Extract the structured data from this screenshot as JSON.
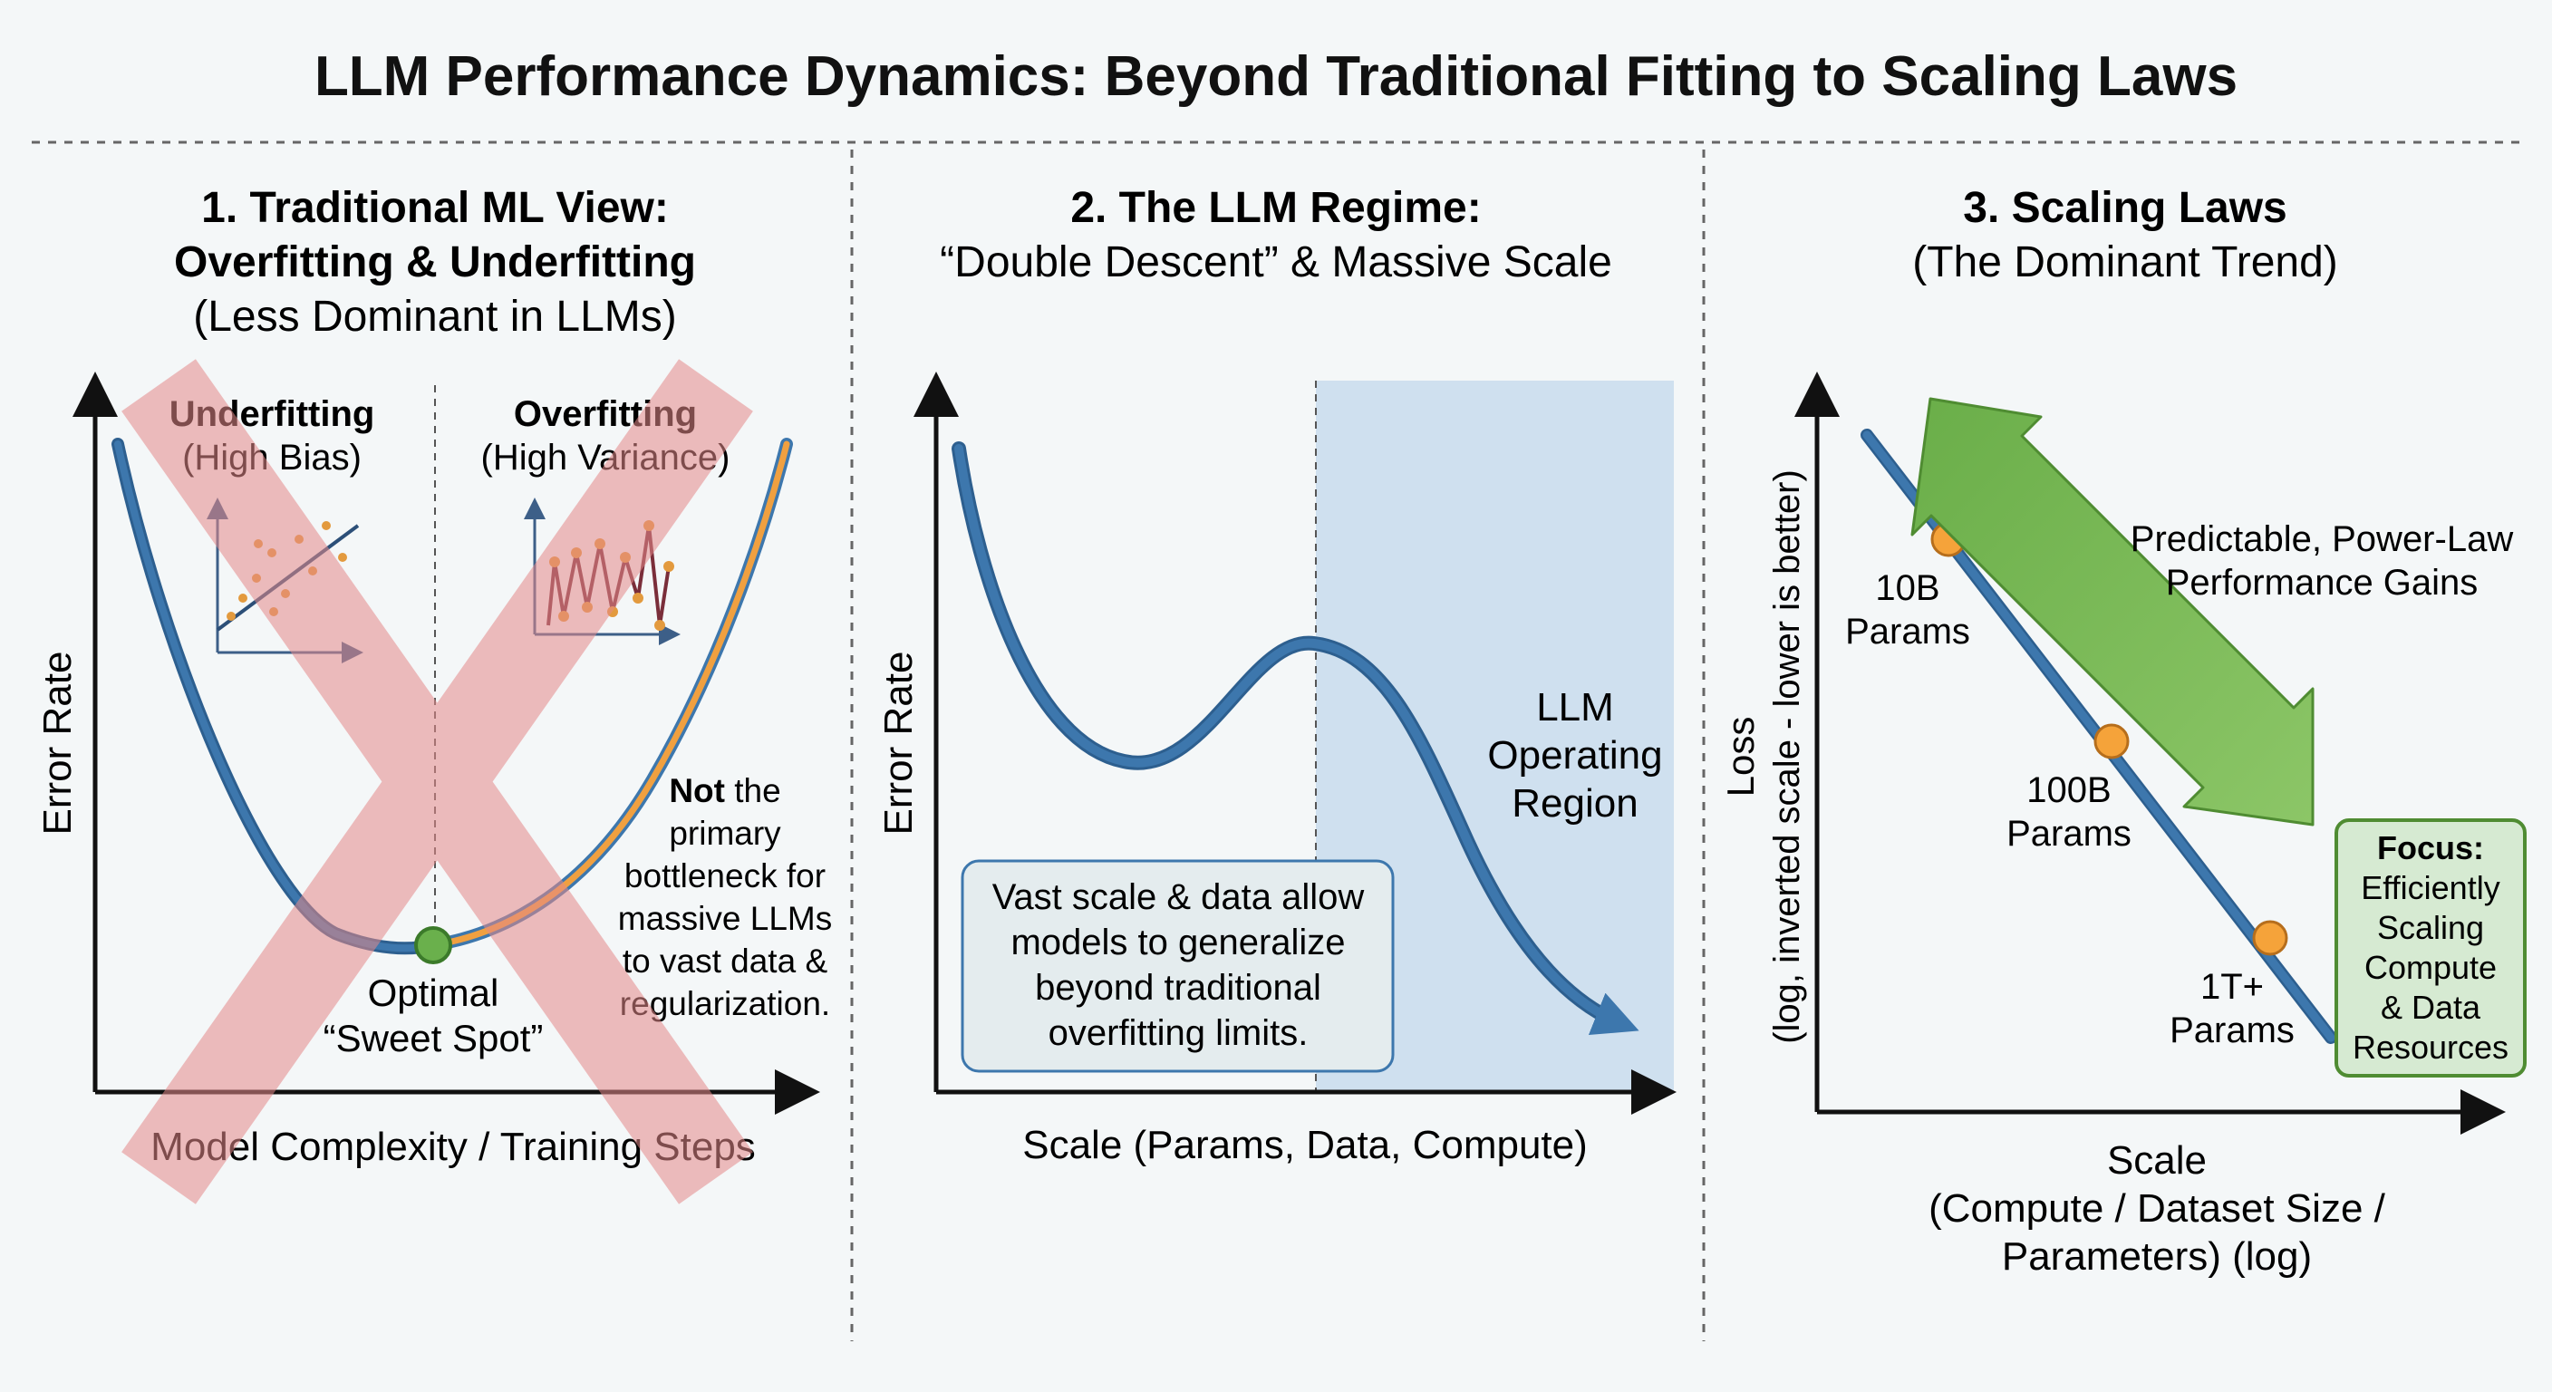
{
  "title": "LLM Performance Dynamics: Beyond Traditional Fitting to Scaling Laws",
  "panel1": {
    "heading_line1": "1. Traditional ML View:",
    "heading_line2": "Overfitting & Underfitting",
    "subheading": "(Less Dominant in LLMs)",
    "ylabel": "Error Rate",
    "xlabel": "Model Complexity / Training Steps",
    "underfitting_label": "Underfitting",
    "underfitting_sub": "(High Bias)",
    "overfitting_label": "Overfitting",
    "overfitting_sub": "(High Variance)",
    "optimal_line1": "Optimal",
    "optimal_line2": "“Sweet Spot”",
    "note_bold": "Not",
    "note_line1_rest": " the",
    "note_line2": "primary",
    "note_line3": "bottleneck for",
    "note_line4": "massive LLMs",
    "note_line5": "to vast data &",
    "note_line6": "regularization.",
    "colors": {
      "curve_left": "#3d77ad",
      "curve_right": "#f0a040",
      "optimum": "#6ab04c",
      "cross": "#e58a8a"
    }
  },
  "panel2": {
    "heading_line1": "2. The LLM Regime:",
    "heading_line2": "“Double Descent” & Massive Scale",
    "ylabel": "Error Rate",
    "xlabel": "Scale (Params, Data, Compute)",
    "region_line1": "LLM",
    "region_line2": "Operating",
    "region_line3": "Region",
    "box_line1": "Vast scale & data allow",
    "box_line2": "models to generalize",
    "box_line3": "beyond traditional",
    "box_line4": "overfitting limits.",
    "colors": {
      "curve": "#3d77ad",
      "region": "#cfe0ef"
    }
  },
  "panel3": {
    "heading_line1": "3. Scaling Laws",
    "heading_line2": "(The Dominant Trend)",
    "ylabel_line1": "Loss",
    "ylabel_line2": "(log, inverted scale - lower is better)",
    "xlabel_line1": "Scale",
    "xlabel_line2": "(Compute / Dataset Size /",
    "xlabel_line3": "Parameters) (log)",
    "points": [
      {
        "line1": "10B",
        "line2": "Params"
      },
      {
        "line1": "100B",
        "line2": "Params"
      },
      {
        "line1": "1T+",
        "line2": "Params"
      }
    ],
    "gain_line1": "Predictable, Power-Law",
    "gain_line2": "Performance Gains",
    "focus_title": "Focus:",
    "focus_line1": "Efficiently",
    "focus_line2": "Scaling",
    "focus_line3": "Compute",
    "focus_line4": "& Data",
    "focus_line5": "Resources",
    "colors": {
      "line": "#3d77ad",
      "point": "#f5a33a",
      "arrow": "#74b34f",
      "focus_bg": "#d6ead2"
    }
  }
}
